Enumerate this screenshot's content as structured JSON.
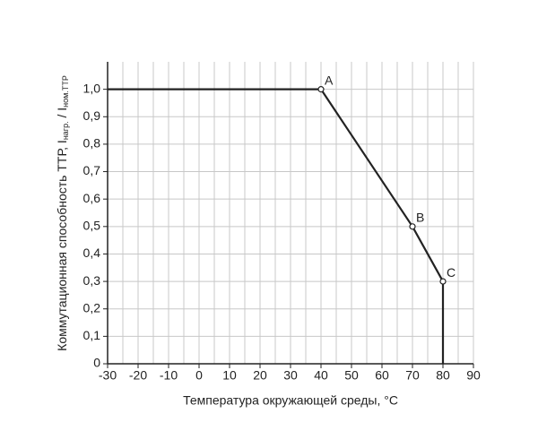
{
  "chart_data": {
    "type": "line",
    "x_label": "Температура окружающей среды, °C",
    "y_label": {
      "main": "Коммутационная способность ТТР, I",
      "sub1": "нагр.",
      "mid": " / I",
      "sub2": "ном.ТТР"
    },
    "x": [
      -30,
      40,
      70,
      80,
      80
    ],
    "series": [
      {
        "color": "#222222",
        "values": [
          1.0,
          1.0,
          0.5,
          0.3,
          0
        ],
        "point_labels": [
          null,
          "A",
          "B",
          "C",
          null
        ]
      }
    ],
    "xlim": [
      -30,
      90
    ],
    "xticks": [
      -30,
      -20,
      -10,
      0,
      10,
      20,
      30,
      40,
      50,
      60,
      70,
      80,
      90
    ],
    "x_minor_grid": [
      -25,
      -15,
      -5,
      5,
      15,
      25,
      35,
      45,
      55,
      65,
      75,
      85
    ],
    "ylim": [
      0,
      1.1
    ],
    "yticks": [
      0,
      {
        "value": 0.1,
        "label": "0,1"
      },
      {
        "value": 0.2,
        "label": "0,2"
      },
      {
        "value": 0.3,
        "label": "0,3"
      },
      {
        "value": 0.4,
        "label": "0,4"
      },
      {
        "value": 0.5,
        "label": "0,5"
      },
      {
        "value": 0.6,
        "label": "0,6"
      },
      {
        "value": 0.7,
        "label": "0,7"
      },
      {
        "value": 0.8,
        "label": "0,8"
      },
      {
        "value": 0.9,
        "label": "0,9"
      },
      {
        "value": 1.0,
        "label": "1,0"
      }
    ],
    "grid": true
  }
}
